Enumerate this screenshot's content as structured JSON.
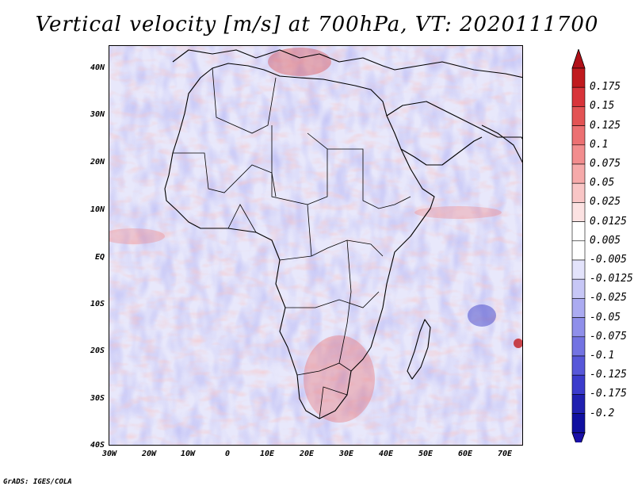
{
  "title": "Vertical velocity [m/s] at 700hPa, VT: 2020111700",
  "credit": "GrADS: IGES/COLA",
  "axes": {
    "lat_labels": [
      "40N",
      "30N",
      "20N",
      "10N",
      "EQ",
      "10S",
      "20S",
      "30S",
      "40S"
    ],
    "lon_labels": [
      "30W",
      "20W",
      "10W",
      "0",
      "10E",
      "20E",
      "30E",
      "40E",
      "50E",
      "60E",
      "70E"
    ]
  },
  "colorbar": {
    "labels": [
      "0.175",
      "0.15",
      "0.125",
      "0.1",
      "0.075",
      "0.05",
      "0.025",
      "0.0125",
      "0.005",
      "-0.005",
      "-0.0125",
      "-0.025",
      "-0.05",
      "-0.075",
      "-0.1",
      "-0.125",
      "-0.175",
      "-0.2"
    ],
    "colors": [
      "#c01a1e",
      "#d8343a",
      "#e35354",
      "#ec7072",
      "#f28d8e",
      "#f6aaaa",
      "#f9c6c6",
      "#fce2e2",
      "#ffffff",
      "#ffffff",
      "#e3e3fb",
      "#c7c7f6",
      "#ababf1",
      "#8f8fea",
      "#7373e2",
      "#5757d9",
      "#3b3bcc",
      "#2020b0",
      "#1010a0"
    ],
    "top_cap_color": "#b01018",
    "bottom_cap_color": "#1a10a8"
  }
}
